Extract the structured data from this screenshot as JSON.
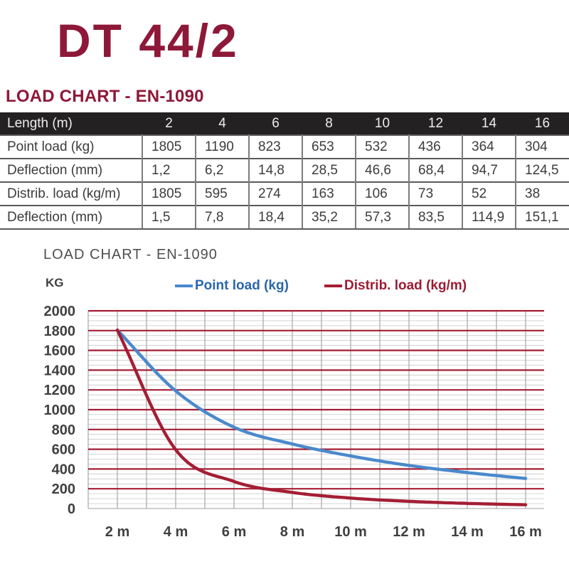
{
  "page": {
    "title": "DT 44/2",
    "section_heading": "LOAD CHART - EN-1090"
  },
  "table": {
    "header": [
      "Length (m)",
      "2",
      "4",
      "6",
      "8",
      "10",
      "12",
      "14",
      "16"
    ],
    "rows": [
      [
        "Point load (kg)",
        "1805",
        "1190",
        "823",
        "653",
        "532",
        "436",
        "364",
        "304"
      ],
      [
        "Deflection (mm)",
        "1,2",
        "6,2",
        "14,8",
        "28,5",
        "46,6",
        "68,4",
        "94,7",
        "124,5"
      ],
      [
        "Distrib. load (kg/m)",
        "1805",
        "595",
        "274",
        "163",
        "106",
        "73",
        "52",
        "38"
      ],
      [
        "Deflection (mm)",
        "1,5",
        "7,8",
        "18,4",
        "35,2",
        "57,3",
        "83,5",
        "114,9",
        "151,1"
      ]
    ]
  },
  "chart": {
    "title": "LOAD CHART - EN-1090",
    "y_axis_unit": "KG",
    "legend": [
      {
        "label": "Point load (kg)",
        "text_color": "#2b66ad",
        "line_color": "#4a89cc"
      },
      {
        "label": "Distrib. load (kg/m)",
        "text_color": "#9e1b33",
        "line_color": "#a41e34"
      }
    ]
  },
  "chart_data": {
    "type": "line",
    "title": "LOAD CHART - EN-1090",
    "ylabel": "KG",
    "x": [
      2,
      4,
      6,
      8,
      10,
      12,
      14,
      16
    ],
    "x_tick_labels": [
      "2 m",
      "4 m",
      "6 m",
      "8 m",
      "10 m",
      "12 m",
      "14 m",
      "16 m"
    ],
    "series": [
      {
        "name": "Point load (kg)",
        "color": "#4a89cc",
        "values": [
          1805,
          1190,
          823,
          653,
          532,
          436,
          364,
          304
        ]
      },
      {
        "name": "Distrib. load (kg/m)",
        "color": "#a41e34",
        "values": [
          1805,
          595,
          274,
          163,
          106,
          73,
          52,
          38
        ]
      }
    ],
    "ylim": [
      0,
      2000
    ],
    "xlim": [
      1,
      16.6
    ],
    "y_major_step": 200,
    "y_minor_step": 50,
    "x_grid_step": 1,
    "grid": true,
    "legend_position": "top"
  },
  "colors": {
    "brand_maroon": "#8e1838",
    "grid_major": "#a41e34",
    "grid_minor": "#c7c7c7",
    "grid_zero": "#b5b5b5",
    "grid_vertical": "#9e9e9e",
    "axis_text": "#3f3f3f",
    "table_header_bg": "#242122",
    "table_header_text": "#ededed"
  }
}
